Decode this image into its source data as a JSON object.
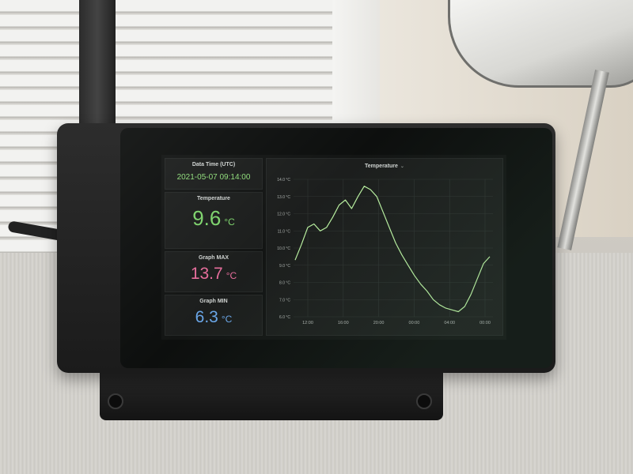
{
  "datetime": {
    "label": "Data Time (UTC)",
    "value": "2021-05-07 09:14:00"
  },
  "stats": [
    {
      "label": "Temperature",
      "value": "9.6",
      "unit": "°C",
      "color": "#7dd36c"
    },
    {
      "label": "Graph MAX",
      "value": "13.7",
      "unit": "°C",
      "color": "#e66d9b"
    },
    {
      "label": "Graph MIN",
      "value": "6.3",
      "unit": "°C",
      "color": "#6aa6e8"
    }
  ],
  "chart": {
    "title": "Temperature",
    "caret_icon": "chevron-down-icon"
  },
  "chart_data": {
    "type": "line",
    "title": "Temperature",
    "xlabel": "",
    "ylabel": "",
    "y_ticks": [
      "14.0 °C",
      "13.0 °C",
      "12.0 °C",
      "11.0 °C",
      "10.0 °C",
      "9.0 °C",
      "8.0 °C",
      "7.0 °C",
      "6.0 °C"
    ],
    "x_ticks": [
      "12:00",
      "16:00",
      "20:00",
      "00:00",
      "04:00",
      "00:00"
    ],
    "ylim": [
      6.0,
      14.0
    ],
    "grid": true,
    "line_color": "#b9f0a0",
    "series": [
      {
        "values": [
          9.3,
          10.2,
          11.2,
          11.4,
          11.0,
          11.2,
          11.8,
          12.5,
          12.8,
          12.3,
          13.0,
          13.6,
          13.4,
          13.0,
          12.1,
          11.2,
          10.3,
          9.6,
          9.0,
          8.4,
          7.9,
          7.5,
          7.0,
          6.7,
          6.5,
          6.4,
          6.3,
          6.6,
          7.3,
          8.2,
          9.1,
          9.5
        ]
      }
    ]
  }
}
